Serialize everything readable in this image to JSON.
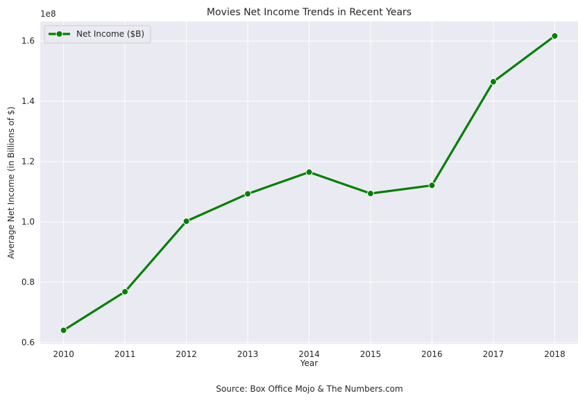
{
  "chart_data": {
    "type": "line",
    "title": "Movies Net Income Trends in Recent Years",
    "xlabel": "Year",
    "ylabel": "Average Net Income (in Billions of $)",
    "y_offset_label": "1e8",
    "source": "Source: Box Office Mojo & The Numbers.com",
    "x": [
      2010,
      2011,
      2012,
      2013,
      2014,
      2015,
      2016,
      2017,
      2018
    ],
    "series": [
      {
        "name": "Net Income ($B)",
        "values": [
          0.64,
          0.768,
          1.002,
          1.093,
          1.165,
          1.094,
          1.121,
          1.465,
          1.617
        ]
      }
    ],
    "xlim": [
      2009.62,
      2018.38
    ],
    "ylim": [
      0.595,
      1.665
    ],
    "yticks": [
      0.6,
      0.8,
      1.0,
      1.2,
      1.4,
      1.6
    ],
    "ytick_labels": [
      "0.6",
      "0.8",
      "1.0",
      "1.2",
      "1.4",
      "1.6"
    ],
    "xtick_labels": [
      "2010",
      "2011",
      "2012",
      "2013",
      "2014",
      "2015",
      "2016",
      "2017",
      "2018"
    ],
    "grid": true,
    "legend_position": "top-left",
    "colors": {
      "line": "#008000",
      "background": "#eaeaf2",
      "grid": "#ffffff"
    }
  }
}
